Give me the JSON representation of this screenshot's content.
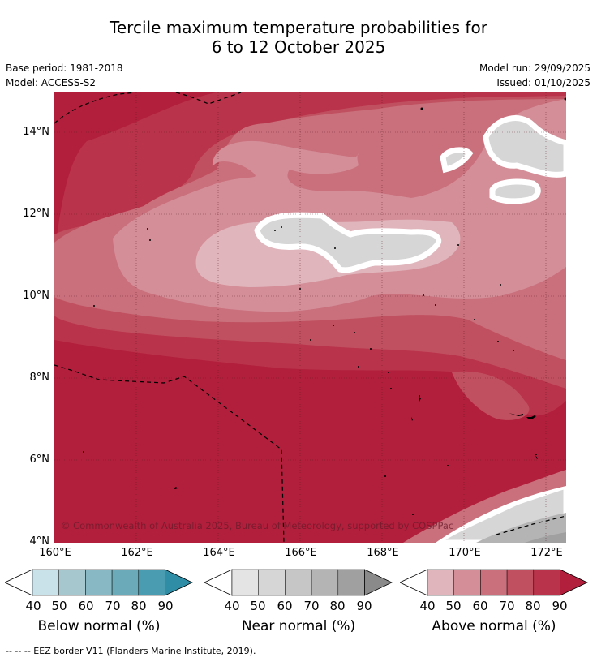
{
  "title_line1": "Tercile maximum temperature probabilities for",
  "title_line2": "6 to 12 October 2025",
  "base_period": "Base period: 1981-2018",
  "model": "Model: ACCESS-S2",
  "model_run": "Model run: 29/09/2025",
  "issued": "Issued: 01/10/2025",
  "lat_labels": [
    "14°N",
    "12°N",
    "10°N",
    "8°N",
    "6°N",
    "4°N"
  ],
  "lon_labels": [
    "160°E",
    "162°E",
    "164°E",
    "166°E",
    "168°E",
    "170°E",
    "172°E"
  ],
  "credit": "© Commonwealth of Australia 2025, Bureau of Meteorology, supported by COSPPac",
  "colorbars": [
    {
      "label": "Below normal (%)",
      "ticks": [
        "40",
        "50",
        "60",
        "70",
        "80",
        "90"
      ],
      "colors": [
        "#c9e1e8",
        "#a6c7ce",
        "#88b8c4",
        "#6aaab9",
        "#4a9cb0",
        "#2f8ea6"
      ]
    },
    {
      "label": "Near normal (%)",
      "ticks": [
        "40",
        "50",
        "60",
        "70",
        "80",
        "90"
      ],
      "colors": [
        "#e4e4e4",
        "#d6d6d6",
        "#c6c6c6",
        "#b4b4b4",
        "#a0a0a0",
        "#8a8a8a"
      ]
    },
    {
      "label": "Above normal (%)",
      "ticks": [
        "40",
        "50",
        "60",
        "70",
        "80",
        "90"
      ],
      "colors": [
        "#e0b5bc",
        "#d48e98",
        "#c9707c",
        "#c0505f",
        "#b9334a",
        "#b11f3c"
      ]
    }
  ],
  "footnote": "-- -- -- EEZ border V11 (Flanders Marine Institute, 2019)."
}
